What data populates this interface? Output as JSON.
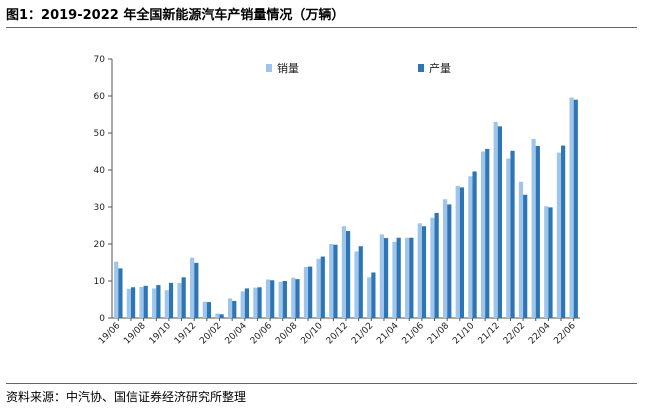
{
  "figure": {
    "title": "图1：2019-2022 年全国新能源汽车产销量情况（万辆）",
    "source": "资料来源：中汽协、国信证券经济研究所整理"
  },
  "colors": {
    "sales": "#9fc6ea",
    "production": "#2e75b6",
    "axis": "#555555",
    "rule": "#666666"
  },
  "chart_data": {
    "type": "bar",
    "title": "2019-2022 年全国新能源汽车产销量情况（万辆）",
    "xlabel": "",
    "ylabel": "",
    "ylim": [
      0,
      70
    ],
    "yticks": [
      0,
      10,
      20,
      30,
      40,
      50,
      60,
      70
    ],
    "grid": false,
    "legend": "top",
    "categories": [
      "19/06",
      "19/07",
      "19/08",
      "19/09",
      "19/10",
      "19/11",
      "19/12",
      "20/01",
      "20/02",
      "20/03",
      "20/04",
      "20/05",
      "20/06",
      "20/07",
      "20/08",
      "20/09",
      "20/10",
      "20/11",
      "20/12",
      "21/01",
      "21/02",
      "21/03",
      "21/04",
      "21/05",
      "21/06",
      "21/07",
      "21/08",
      "21/09",
      "21/10",
      "21/11",
      "21/12",
      "22/01",
      "22/02",
      "22/03",
      "22/04",
      "22/05",
      "22/06"
    ],
    "tick_labels": [
      "19/06",
      "19/08",
      "19/10",
      "19/12",
      "20/02",
      "20/04",
      "20/06",
      "20/08",
      "20/10",
      "20/12",
      "21/02",
      "21/04",
      "21/06",
      "21/08",
      "21/10",
      "21/12",
      "22/02",
      "22/04",
      "22/06"
    ],
    "series": [
      {
        "name": "销量",
        "values": [
          15.2,
          7.9,
          8.4,
          8.0,
          7.5,
          9.5,
          16.3,
          4.4,
          1.2,
          5.3,
          7.2,
          8.2,
          10.4,
          9.8,
          10.9,
          13.8,
          16.0,
          20.0,
          24.8,
          18.0,
          11.0,
          22.6,
          20.6,
          21.7,
          25.6,
          27.1,
          32.1,
          35.7,
          38.3,
          45.0,
          53.0,
          43.1,
          36.8,
          48.4,
          30.2,
          44.7,
          59.6
        ]
      },
      {
        "name": "产量",
        "values": [
          13.4,
          8.3,
          8.7,
          8.9,
          9.5,
          11.0,
          14.9,
          4.3,
          1.0,
          4.6,
          8.0,
          8.3,
          10.2,
          10.0,
          10.5,
          13.9,
          16.6,
          19.8,
          23.5,
          19.4,
          12.3,
          21.6,
          21.7,
          21.7,
          24.8,
          28.4,
          30.7,
          35.3,
          39.6,
          45.7,
          51.8,
          45.2,
          33.3,
          46.5,
          29.9,
          46.6,
          59.0
        ]
      }
    ]
  }
}
